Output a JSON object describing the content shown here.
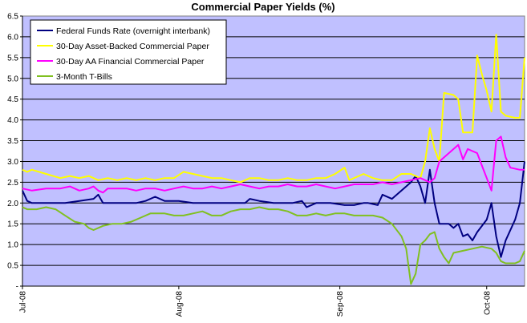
{
  "chart_data": {
    "type": "line",
    "title": "Commercial Paper Yields (%)",
    "xlabel": "",
    "ylabel": "",
    "ylim": [
      0,
      6.5
    ],
    "y_ticks": [
      "-",
      "0.5",
      "1.0",
      "1.5",
      "2.0",
      "2.5",
      "3.0",
      "3.5",
      "4.0",
      "4.5",
      "5.0",
      "5.5",
      "6.0",
      "6.5"
    ],
    "y_tick_values": [
      0,
      0.5,
      1.0,
      1.5,
      2.0,
      2.5,
      3.0,
      3.5,
      4.0,
      4.5,
      5.0,
      5.5,
      6.0,
      6.5
    ],
    "x_range_days": [
      0,
      106
    ],
    "x_ticks": [
      {
        "label": "Jul-08",
        "day": 0
      },
      {
        "label": "Aug-08",
        "day": 33
      },
      {
        "label": "Sep-08",
        "day": 67
      },
      {
        "label": "Oct-08",
        "day": 98
      }
    ],
    "plot_background": "#c0c0ff",
    "grid": true,
    "legend_position": "top-left",
    "series": [
      {
        "name": "Federal Funds Rate (overnight interbank)",
        "color": "#000080",
        "points": [
          [
            0,
            2.3
          ],
          [
            1,
            2.05
          ],
          [
            2,
            2.0
          ],
          [
            5,
            2.0
          ],
          [
            9,
            2.0
          ],
          [
            12,
            2.05
          ],
          [
            15,
            2.1
          ],
          [
            16,
            2.2
          ],
          [
            17,
            2.0
          ],
          [
            19,
            2.0
          ],
          [
            24,
            2.0
          ],
          [
            26,
            2.05
          ],
          [
            28,
            2.15
          ],
          [
            30,
            2.05
          ],
          [
            33,
            2.05
          ],
          [
            36,
            2.0
          ],
          [
            40,
            2.0
          ],
          [
            43,
            2.0
          ],
          [
            47,
            2.0
          ],
          [
            48,
            2.1
          ],
          [
            50,
            2.05
          ],
          [
            53,
            2.0
          ],
          [
            55,
            2.0
          ],
          [
            57,
            2.0
          ],
          [
            59,
            2.05
          ],
          [
            60,
            1.9
          ],
          [
            62,
            2.0
          ],
          [
            65,
            2.0
          ],
          [
            68,
            1.95
          ],
          [
            70,
            1.95
          ],
          [
            72,
            2.0
          ],
          [
            73,
            2.0
          ],
          [
            75,
            1.95
          ],
          [
            76,
            2.2
          ],
          [
            78,
            2.1
          ],
          [
            80,
            2.3
          ],
          [
            82,
            2.5
          ],
          [
            83,
            2.65
          ],
          [
            84,
            2.4
          ],
          [
            85,
            2.0
          ],
          [
            86,
            2.8
          ],
          [
            87,
            2.0
          ],
          [
            88,
            1.5
          ],
          [
            90,
            1.5
          ],
          [
            91,
            1.4
          ],
          [
            92,
            1.5
          ],
          [
            93,
            1.2
          ],
          [
            94,
            1.25
          ],
          [
            95,
            1.1
          ],
          [
            96,
            1.3
          ],
          [
            98,
            1.6
          ],
          [
            99,
            2.0
          ],
          [
            100,
            1.2
          ],
          [
            101,
            0.7
          ],
          [
            102,
            1.1
          ],
          [
            104,
            1.6
          ],
          [
            105,
            2.0
          ],
          [
            106,
            3.0
          ]
        ]
      },
      {
        "name": "30-Day Asset-Backed Commercial Paper",
        "color": "#ffff00",
        "points": [
          [
            0,
            2.8
          ],
          [
            1,
            2.75
          ],
          [
            2,
            2.8
          ],
          [
            5,
            2.7
          ],
          [
            8,
            2.6
          ],
          [
            10,
            2.65
          ],
          [
            12,
            2.6
          ],
          [
            14,
            2.65
          ],
          [
            16,
            2.55
          ],
          [
            18,
            2.6
          ],
          [
            20,
            2.55
          ],
          [
            22,
            2.6
          ],
          [
            24,
            2.55
          ],
          [
            26,
            2.6
          ],
          [
            28,
            2.55
          ],
          [
            30,
            2.6
          ],
          [
            32,
            2.6
          ],
          [
            34,
            2.75
          ],
          [
            36,
            2.7
          ],
          [
            38,
            2.65
          ],
          [
            40,
            2.6
          ],
          [
            42,
            2.6
          ],
          [
            44,
            2.55
          ],
          [
            46,
            2.5
          ],
          [
            48,
            2.6
          ],
          [
            50,
            2.6
          ],
          [
            52,
            2.55
          ],
          [
            54,
            2.55
          ],
          [
            56,
            2.6
          ],
          [
            58,
            2.55
          ],
          [
            60,
            2.55
          ],
          [
            62,
            2.6
          ],
          [
            64,
            2.6
          ],
          [
            66,
            2.7
          ],
          [
            68,
            2.85
          ],
          [
            69,
            2.55
          ],
          [
            70,
            2.6
          ],
          [
            72,
            2.7
          ],
          [
            74,
            2.6
          ],
          [
            76,
            2.55
          ],
          [
            78,
            2.55
          ],
          [
            80,
            2.7
          ],
          [
            82,
            2.7
          ],
          [
            84,
            2.6
          ],
          [
            85,
            3.0
          ],
          [
            86,
            3.8
          ],
          [
            87,
            3.3
          ],
          [
            88,
            3.0
          ],
          [
            89,
            4.65
          ],
          [
            91,
            4.6
          ],
          [
            92,
            4.5
          ],
          [
            93,
            3.7
          ],
          [
            94,
            3.7
          ],
          [
            95,
            3.7
          ],
          [
            96,
            5.55
          ],
          [
            97,
            5.1
          ],
          [
            98,
            4.7
          ],
          [
            99,
            4.2
          ],
          [
            100,
            6.05
          ],
          [
            101,
            4.2
          ],
          [
            102,
            4.1
          ],
          [
            104,
            4.05
          ],
          [
            105,
            4.05
          ],
          [
            106,
            5.5
          ]
        ]
      },
      {
        "name": "30-Day AA Financial Commercial Paper",
        "color": "#ff00ff",
        "points": [
          [
            0,
            2.35
          ],
          [
            2,
            2.3
          ],
          [
            5,
            2.35
          ],
          [
            8,
            2.35
          ],
          [
            10,
            2.4
          ],
          [
            12,
            2.3
          ],
          [
            14,
            2.35
          ],
          [
            15,
            2.4
          ],
          [
            16,
            2.3
          ],
          [
            17,
            2.25
          ],
          [
            18,
            2.35
          ],
          [
            20,
            2.35
          ],
          [
            22,
            2.35
          ],
          [
            24,
            2.3
          ],
          [
            26,
            2.35
          ],
          [
            28,
            2.35
          ],
          [
            30,
            2.3
          ],
          [
            32,
            2.35
          ],
          [
            34,
            2.4
          ],
          [
            36,
            2.35
          ],
          [
            38,
            2.35
          ],
          [
            40,
            2.4
          ],
          [
            42,
            2.35
          ],
          [
            44,
            2.4
          ],
          [
            46,
            2.45
          ],
          [
            48,
            2.4
          ],
          [
            50,
            2.35
          ],
          [
            52,
            2.4
          ],
          [
            54,
            2.4
          ],
          [
            56,
            2.45
          ],
          [
            58,
            2.4
          ],
          [
            60,
            2.4
          ],
          [
            62,
            2.45
          ],
          [
            64,
            2.4
          ],
          [
            66,
            2.35
          ],
          [
            68,
            2.4
          ],
          [
            70,
            2.45
          ],
          [
            72,
            2.45
          ],
          [
            74,
            2.45
          ],
          [
            76,
            2.5
          ],
          [
            78,
            2.45
          ],
          [
            80,
            2.5
          ],
          [
            82,
            2.55
          ],
          [
            84,
            2.6
          ],
          [
            85,
            2.55
          ],
          [
            86,
            2.5
          ],
          [
            87,
            2.6
          ],
          [
            88,
            3.0
          ],
          [
            90,
            3.2
          ],
          [
            92,
            3.4
          ],
          [
            93,
            3.05
          ],
          [
            94,
            3.3
          ],
          [
            95,
            3.25
          ],
          [
            96,
            3.2
          ],
          [
            97,
            2.9
          ],
          [
            98,
            2.6
          ],
          [
            99,
            2.3
          ],
          [
            100,
            3.5
          ],
          [
            101,
            3.6
          ],
          [
            102,
            3.1
          ],
          [
            103,
            2.85
          ],
          [
            105,
            2.8
          ],
          [
            106,
            2.8
          ]
        ]
      },
      {
        "name": "3-Month T-Bills",
        "color": "#80c020",
        "points": [
          [
            0,
            1.9
          ],
          [
            1,
            1.85
          ],
          [
            3,
            1.85
          ],
          [
            5,
            1.9
          ],
          [
            7,
            1.85
          ],
          [
            9,
            1.7
          ],
          [
            11,
            1.55
          ],
          [
            13,
            1.5
          ],
          [
            14,
            1.4
          ],
          [
            15,
            1.35
          ],
          [
            17,
            1.45
          ],
          [
            19,
            1.5
          ],
          [
            21,
            1.5
          ],
          [
            23,
            1.55
          ],
          [
            25,
            1.65
          ],
          [
            27,
            1.75
          ],
          [
            30,
            1.75
          ],
          [
            32,
            1.7
          ],
          [
            34,
            1.7
          ],
          [
            36,
            1.75
          ],
          [
            38,
            1.8
          ],
          [
            40,
            1.7
          ],
          [
            42,
            1.7
          ],
          [
            44,
            1.8
          ],
          [
            46,
            1.85
          ],
          [
            48,
            1.85
          ],
          [
            50,
            1.9
          ],
          [
            52,
            1.85
          ],
          [
            54,
            1.85
          ],
          [
            56,
            1.8
          ],
          [
            58,
            1.7
          ],
          [
            60,
            1.7
          ],
          [
            62,
            1.75
          ],
          [
            64,
            1.7
          ],
          [
            66,
            1.75
          ],
          [
            68,
            1.75
          ],
          [
            70,
            1.7
          ],
          [
            72,
            1.7
          ],
          [
            74,
            1.7
          ],
          [
            76,
            1.65
          ],
          [
            78,
            1.5
          ],
          [
            80,
            1.2
          ],
          [
            81,
            0.9
          ],
          [
            82,
            0.05
          ],
          [
            83,
            0.3
          ],
          [
            84,
            1.0
          ],
          [
            85,
            1.1
          ],
          [
            86,
            1.25
          ],
          [
            87,
            1.3
          ],
          [
            88,
            0.9
          ],
          [
            89,
            0.7
          ],
          [
            90,
            0.55
          ],
          [
            91,
            0.8
          ],
          [
            93,
            0.85
          ],
          [
            95,
            0.9
          ],
          [
            97,
            0.95
          ],
          [
            99,
            0.9
          ],
          [
            100,
            0.8
          ],
          [
            101,
            0.6
          ],
          [
            102,
            0.55
          ],
          [
            104,
            0.55
          ],
          [
            105,
            0.6
          ],
          [
            106,
            0.85
          ]
        ]
      }
    ]
  }
}
